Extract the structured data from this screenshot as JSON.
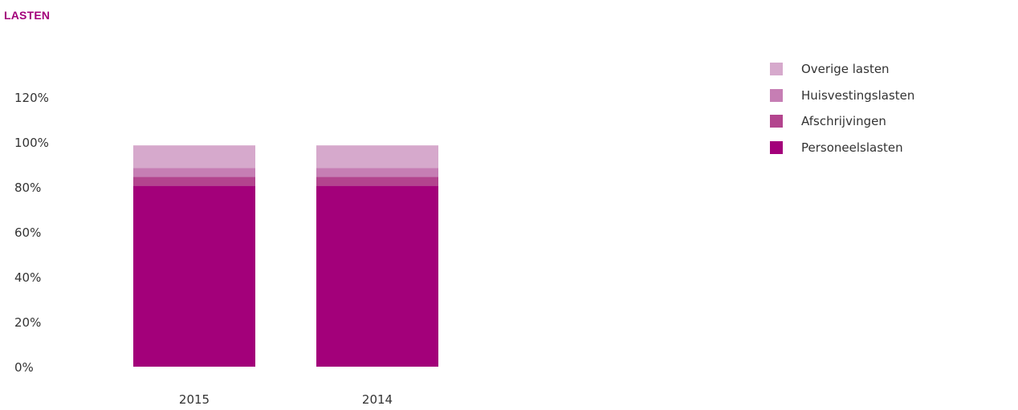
{
  "title": "LASTEN",
  "chart_data": {
    "type": "bar",
    "stacked": true,
    "categories": [
      "2015",
      "2014"
    ],
    "series": [
      {
        "name": "Personeelslasten",
        "values": [
          80.5,
          80.5
        ],
        "color": "#a3007a"
      },
      {
        "name": "Afschrijvingen",
        "values": [
          4,
          4
        ],
        "color": "#b3448e"
      },
      {
        "name": "Huisvestingslasten",
        "values": [
          4,
          4
        ],
        "color": "#c67eb4"
      },
      {
        "name": "Overige lasten",
        "values": [
          10,
          10
        ],
        "color": "#d6a9cc"
      }
    ],
    "yticks": [
      "0%",
      "20%",
      "40%",
      "60%",
      "80%",
      "100%",
      "120%"
    ],
    "ylim": [
      0,
      120
    ],
    "grid": false,
    "legend": "top-right"
  }
}
